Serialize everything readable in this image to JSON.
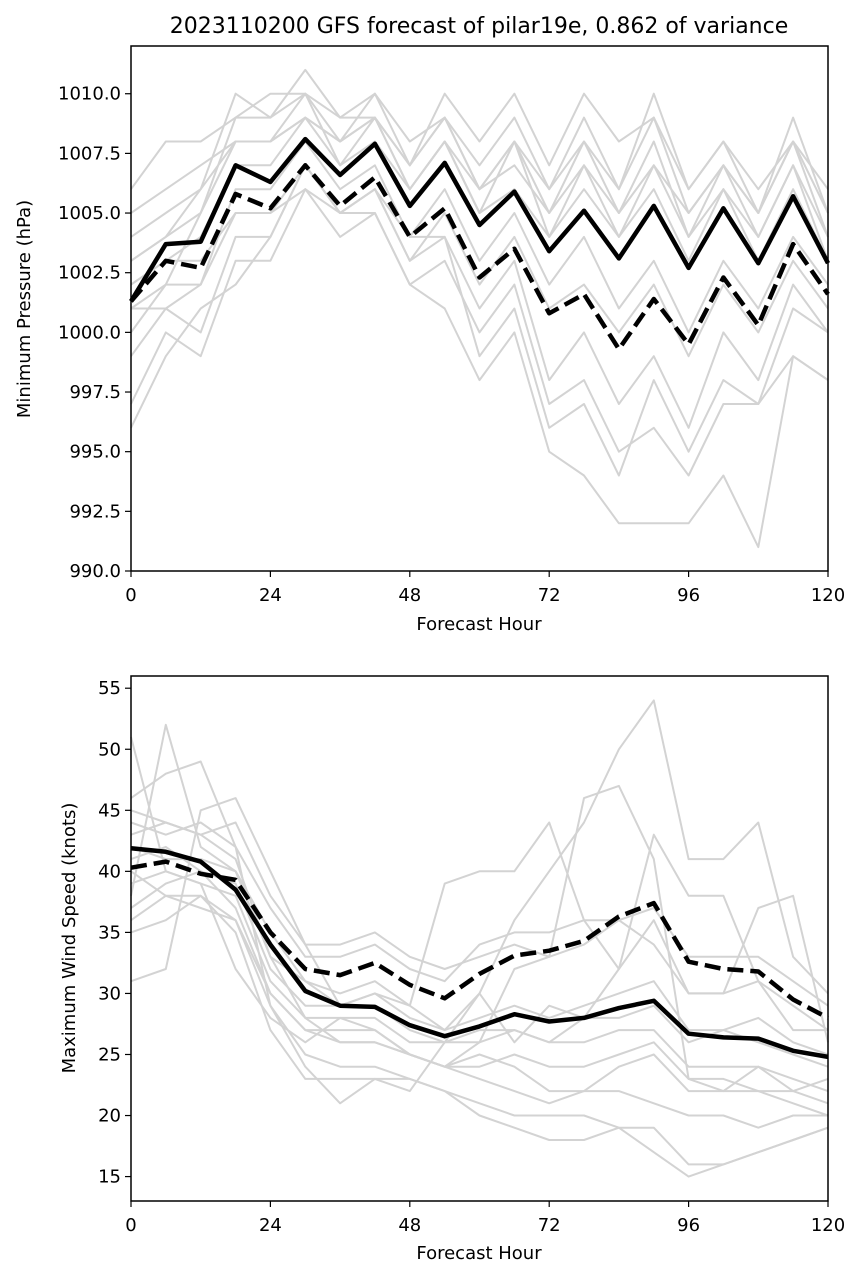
{
  "chart_data": [
    {
      "type": "line",
      "title": "2023110200 GFS forecast of pilar19e, 0.862 of variance",
      "xlabel": "Forecast Hour",
      "ylabel": "Minimum Pressure (hPa)",
      "xlim": [
        0,
        120
      ],
      "ylim": [
        990,
        1012
      ],
      "xticks": [
        0,
        24,
        48,
        72,
        96,
        120
      ],
      "xtick_labels": [
        "0",
        "24",
        "48",
        "72",
        "96",
        "120"
      ],
      "yticks": [
        990,
        992.5,
        995,
        997.5,
        1000,
        1002.5,
        1005,
        1007.5,
        1010
      ],
      "ytick_labels": [
        "990.0",
        "992.5",
        "995.0",
        "997.5",
        "1000.0",
        "1002.5",
        "1005.0",
        "1007.5",
        "1010.0"
      ],
      "grid": false,
      "x": [
        0,
        6,
        12,
        18,
        24,
        30,
        36,
        42,
        48,
        54,
        60,
        66,
        72,
        78,
        84,
        90,
        96,
        102,
        108,
        114,
        120
      ],
      "series": [
        {
          "style": "solid",
          "color": "#000000",
          "values": [
            1001.3,
            1003.7,
            1003.8,
            1007.0,
            1006.3,
            1008.1,
            1006.6,
            1007.9,
            1005.3,
            1007.1,
            1004.5,
            1005.9,
            1003.4,
            1005.1,
            1003.1,
            1005.3,
            1002.7,
            1005.2,
            1002.9,
            1005.7,
            1002.9
          ]
        },
        {
          "style": "dashed",
          "color": "#000000",
          "values": [
            1001.3,
            1003.0,
            1002.7,
            1005.8,
            1005.2,
            1007.0,
            1005.3,
            1006.5,
            1004.0,
            1005.2,
            1002.3,
            1003.5,
            1000.8,
            1001.6,
            999.3,
            1001.4,
            999.5,
            1002.3,
            1000.3,
            1003.7,
            1001.6
          ]
        },
        {
          "style": "ensemble",
          "color": "#d3d3d3",
          "values": [
            1001,
            1002,
            1005,
            1009,
            1009,
            1010,
            1008,
            1010,
            1007,
            1009,
            1006,
            1008,
            1005,
            1007,
            1005,
            1008,
            1004,
            1007,
            1005,
            1008,
            1004
          ]
        },
        {
          "style": "ensemble",
          "color": "#d3d3d3",
          "values": [
            1004,
            1005,
            1006,
            1010,
            1009,
            1011,
            1009,
            1010,
            1008,
            1009,
            1007,
            1009,
            1006,
            1009,
            1006,
            1010,
            1006,
            1008,
            1005,
            1009,
            1005
          ]
        },
        {
          "style": "ensemble",
          "color": "#d3d3d3",
          "values": [
            1003,
            1004,
            1006,
            1008,
            1008,
            1009,
            1008,
            1009,
            1006,
            1008,
            1006,
            1007,
            1005,
            1008,
            1005,
            1007,
            1005,
            1007,
            1004,
            1007,
            1004
          ]
        },
        {
          "style": "ensemble",
          "color": "#d3d3d3",
          "values": [
            1006,
            1008,
            1008,
            1009,
            1010,
            1010,
            1009,
            1009,
            1007,
            1010,
            1008,
            1010,
            1007,
            1010,
            1008,
            1009,
            1006,
            1008,
            1006,
            1008,
            1006
          ]
        },
        {
          "style": "ensemble",
          "color": "#d3d3d3",
          "values": [
            1002,
            1003,
            1004,
            1007,
            1007,
            1009,
            1007,
            1008,
            1006,
            1008,
            1005,
            1006,
            1004,
            1006,
            1004,
            1006,
            1003,
            1006,
            1003,
            1006,
            1003
          ]
        },
        {
          "style": "ensemble",
          "color": "#d3d3d3",
          "values": [
            1000,
            1002,
            1002,
            1006,
            1006,
            1008,
            1006,
            1007,
            1004,
            1006,
            1003,
            1005,
            1002,
            1004,
            1001,
            1003,
            1000,
            1003,
            1001,
            1004,
            1002
          ]
        },
        {
          "style": "ensemble",
          "color": "#d3d3d3",
          "values": [
            1002,
            1003,
            1003,
            1005,
            1005,
            1006,
            1005,
            1006,
            1003,
            1005,
            1002,
            1004,
            1001,
            1002,
            1000,
            1002,
            999,
            1002,
            1000,
            1003,
            1001
          ]
        },
        {
          "style": "ensemble",
          "color": "#d3d3d3",
          "values": [
            999,
            1001,
            1000,
            1004,
            1004,
            1007,
            1005,
            1006,
            1003,
            1004,
            1001,
            1003,
            998,
            1000,
            997,
            999,
            996,
            1000,
            998,
            1002,
            1000
          ]
        },
        {
          "style": "ensemble",
          "color": "#d3d3d3",
          "values": [
            997,
            1000,
            999,
            1003,
            1003,
            1006,
            1004,
            1005,
            1002,
            1003,
            1000,
            1002,
            997,
            998,
            995,
            996,
            994,
            997,
            997,
            999,
            998
          ]
        },
        {
          "style": "ensemble",
          "color": "#d3d3d3",
          "values": [
            996,
            999,
            1001,
            1002,
            1004,
            1007,
            1005,
            1005,
            1002,
            1001,
            998,
            1000,
            995,
            994,
            992,
            992,
            992,
            994,
            991,
            999,
            998
          ]
        },
        {
          "style": "ensemble",
          "color": "#d3d3d3",
          "values": [
            1001,
            1001,
            1002,
            1005,
            1005,
            1007,
            1005,
            1006,
            1004,
            1004,
            999,
            1001,
            996,
            997,
            994,
            998,
            995,
            998,
            997,
            1001,
            1000
          ]
        },
        {
          "style": "ensemble",
          "color": "#d3d3d3",
          "values": [
            1005,
            1006,
            1007,
            1008,
            1008,
            1009,
            1008,
            1009,
            1007,
            1009,
            1006,
            1008,
            1006,
            1008,
            1006,
            1009,
            1005,
            1007,
            1005,
            1008,
            1005
          ]
        },
        {
          "style": "ensemble",
          "color": "#d3d3d3",
          "values": [
            1003,
            1004,
            1005,
            1008,
            1008,
            1010,
            1007,
            1009,
            1006,
            1008,
            1005,
            1008,
            1004,
            1007,
            1004,
            1007,
            1004,
            1006,
            1004,
            1007,
            1003
          ]
        }
      ]
    },
    {
      "type": "line",
      "title": "",
      "xlabel": "Forecast Hour",
      "ylabel": "Maximum Wind Speed (knots)",
      "xlim": [
        0,
        120
      ],
      "ylim": [
        13,
        56
      ],
      "xticks": [
        0,
        24,
        48,
        72,
        96,
        120
      ],
      "xtick_labels": [
        "0",
        "24",
        "48",
        "72",
        "96",
        "120"
      ],
      "yticks": [
        15,
        20,
        25,
        30,
        35,
        40,
        45,
        50,
        55
      ],
      "ytick_labels": [
        "15",
        "20",
        "25",
        "30",
        "35",
        "40",
        "45",
        "50",
        "55"
      ],
      "grid": false,
      "x": [
        0,
        6,
        12,
        18,
        24,
        30,
        36,
        42,
        48,
        54,
        60,
        66,
        72,
        78,
        84,
        90,
        96,
        102,
        108,
        114,
        120
      ],
      "series": [
        {
          "style": "solid",
          "color": "#000000",
          "values": [
            41.9,
            41.6,
            40.8,
            38.5,
            34.0,
            30.2,
            29.0,
            28.9,
            27.4,
            26.5,
            27.3,
            28.3,
            27.7,
            28.0,
            28.8,
            29.4,
            26.7,
            26.4,
            26.3,
            25.3,
            24.8
          ]
        },
        {
          "style": "dashed",
          "color": "#000000",
          "values": [
            40.3,
            40.8,
            39.8,
            39.3,
            35.0,
            32.0,
            31.5,
            32.5,
            30.7,
            29.6,
            31.6,
            33.1,
            33.5,
            34.3,
            36.3,
            37.4,
            32.6,
            32.0,
            31.8,
            29.5,
            28.0
          ]
        },
        {
          "style": "ensemble",
          "color": "#d3d3d3",
          "values": [
            51,
            40,
            39,
            32,
            28,
            26,
            28,
            27,
            25,
            24,
            26,
            32,
            33,
            46,
            47,
            41,
            23,
            22,
            24,
            22,
            23
          ]
        },
        {
          "style": "ensemble",
          "color": "#d3d3d3",
          "values": [
            38,
            52,
            42,
            40,
            33,
            31,
            30,
            31,
            29,
            27,
            30,
            36,
            40,
            44,
            50,
            54,
            41,
            41,
            44,
            33,
            30
          ]
        },
        {
          "style": "ensemble",
          "color": "#d3d3d3",
          "values": [
            31,
            32,
            45,
            46,
            40,
            34,
            29,
            30,
            29,
            39,
            40,
            40,
            44,
            36,
            32,
            43,
            38,
            38,
            31,
            27,
            27
          ]
        },
        {
          "style": "ensemble",
          "color": "#d3d3d3",
          "values": [
            46,
            48,
            49,
            42,
            29,
            24,
            21,
            23,
            22,
            26,
            30,
            26,
            29,
            28,
            32,
            36,
            30,
            30,
            37,
            38,
            26
          ]
        },
        {
          "style": "ensemble",
          "color": "#d3d3d3",
          "values": [
            43,
            44,
            43,
            41,
            33,
            28,
            26,
            26,
            25,
            24,
            25,
            24,
            22,
            22,
            24,
            25,
            22,
            22,
            22,
            21,
            20
          ]
        },
        {
          "style": "ensemble",
          "color": "#d3d3d3",
          "values": [
            40,
            38,
            38,
            35,
            27,
            23,
            23,
            23,
            23,
            22,
            20,
            19,
            18,
            18,
            19,
            19,
            16,
            16,
            17,
            18,
            19
          ]
        },
        {
          "style": "ensemble",
          "color": "#d3d3d3",
          "values": [
            42,
            41,
            41,
            40,
            35,
            31,
            29,
            29,
            27,
            26,
            27,
            27,
            26,
            28,
            28,
            29,
            26,
            27,
            26,
            25,
            24
          ]
        },
        {
          "style": "ensemble",
          "color": "#d3d3d3",
          "values": [
            36,
            38,
            37,
            36,
            30,
            27,
            27,
            27,
            25,
            24,
            23,
            22,
            21,
            22,
            22,
            21,
            20,
            20,
            19,
            20,
            20
          ]
        },
        {
          "style": "ensemble",
          "color": "#d3d3d3",
          "values": [
            44,
            43,
            44,
            42,
            37,
            33,
            33,
            34,
            32,
            31,
            34,
            35,
            35,
            36,
            36,
            34,
            30,
            30,
            31,
            29,
            27
          ]
        },
        {
          "style": "ensemble",
          "color": "#d3d3d3",
          "values": [
            39,
            40,
            39,
            38,
            31,
            28,
            28,
            28,
            26,
            26,
            26,
            27,
            26,
            26,
            27,
            27,
            24,
            24,
            24,
            23,
            22
          ]
        },
        {
          "style": "ensemble",
          "color": "#d3d3d3",
          "values": [
            41,
            42,
            40,
            39,
            32,
            29,
            29,
            30,
            28,
            27,
            28,
            29,
            28,
            29,
            30,
            31,
            27,
            27,
            28,
            26,
            25
          ]
        },
        {
          "style": "ensemble",
          "color": "#d3d3d3",
          "values": [
            37,
            39,
            40,
            37,
            30,
            27,
            26,
            26,
            25,
            24,
            24,
            25,
            24,
            24,
            25,
            26,
            23,
            23,
            22,
            22,
            21
          ]
        },
        {
          "style": "ensemble",
          "color": "#d3d3d3",
          "values": [
            45,
            44,
            43,
            44,
            38,
            34,
            34,
            35,
            33,
            32,
            33,
            34,
            33,
            34,
            36,
            37,
            33,
            33,
            33,
            31,
            29
          ]
        },
        {
          "style": "ensemble",
          "color": "#d3d3d3",
          "values": [
            35,
            36,
            38,
            36,
            29,
            25,
            24,
            24,
            23,
            22,
            21,
            20,
            20,
            20,
            19,
            17,
            15,
            16,
            17,
            18,
            19
          ]
        }
      ]
    }
  ]
}
